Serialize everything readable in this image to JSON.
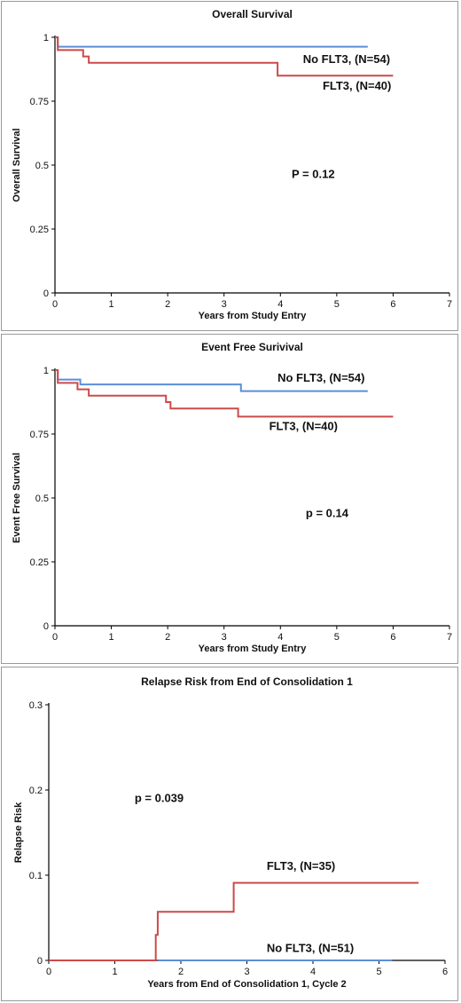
{
  "chart_data": [
    {
      "type": "line",
      "title": "Overall Survival",
      "xlabel": "Years from Study Entry",
      "ylabel": "Overall Survival",
      "xlim": [
        0,
        7
      ],
      "ylim": [
        0,
        1
      ],
      "xticks": [
        0,
        1,
        2,
        3,
        4,
        5,
        6,
        7
      ],
      "xtick_labels": [
        "0",
        "1",
        "2",
        "3",
        "4",
        "5",
        "6",
        "7"
      ],
      "yticks": [
        0,
        0.25,
        0.5,
        0.75,
        1
      ],
      "ytick_labels": [
        "0",
        "0.25",
        "0.5",
        "0.75",
        "1"
      ],
      "series": [
        {
          "color": "#5b8fd6",
          "step": true,
          "x": [
            0,
            0.05,
            5.55
          ],
          "y": [
            1,
            0.963,
            0.963
          ]
        },
        {
          "color": "#cc4a4a",
          "step": true,
          "x": [
            0,
            0.05,
            0.5,
            0.6,
            3.95,
            6.0
          ],
          "y": [
            1,
            0.95,
            0.925,
            0.9,
            0.85,
            0.85
          ]
        }
      ],
      "annotations": [
        {
          "text": "No FLT3, (N=54)",
          "x": 4.4,
          "y": 0.9
        },
        {
          "text": "FLT3, (N=40)",
          "x": 4.75,
          "y": 0.795
        },
        {
          "text": "P = 0.12",
          "x": 4.2,
          "y": 0.45
        }
      ]
    },
    {
      "type": "line",
      "title": "Event Free Surivival",
      "xlabel": "Years from Study Entry",
      "ylabel": "Event Free Survival",
      "xlim": [
        0,
        7
      ],
      "ylim": [
        0,
        1
      ],
      "xticks": [
        0,
        1,
        2,
        3,
        4,
        5,
        6,
        7
      ],
      "xtick_labels": [
        "0",
        "1",
        "2",
        "3",
        "4",
        "5",
        "6",
        "7"
      ],
      "yticks": [
        0,
        0.25,
        0.5,
        0.75,
        1
      ],
      "ytick_labels": [
        "0",
        "0.25",
        "0.5",
        "0.75",
        "1"
      ],
      "series": [
        {
          "color": "#5b8fd6",
          "step": true,
          "x": [
            0,
            0.05,
            0.45,
            3.3,
            5.55
          ],
          "y": [
            1,
            0.963,
            0.944,
            0.918,
            0.918
          ]
        },
        {
          "color": "#cc4a4a",
          "step": true,
          "x": [
            0,
            0.05,
            0.4,
            0.6,
            1.97,
            2.05,
            3.25,
            6.0
          ],
          "y": [
            1,
            0.95,
            0.925,
            0.9,
            0.875,
            0.85,
            0.818,
            0.818
          ]
        }
      ],
      "annotations": [
        {
          "text": "No FLT3, (N=54)",
          "x": 3.95,
          "y": 0.955
        },
        {
          "text": "FLT3, (N=40)",
          "x": 3.8,
          "y": 0.765
        },
        {
          "text": "p = 0.14",
          "x": 4.45,
          "y": 0.425
        }
      ]
    },
    {
      "type": "line",
      "title": "Relapse Risk from End of Consolidation 1",
      "xlabel": "Years from End of Consolidation 1, Cycle 2",
      "ylabel": "Relapse Risk",
      "xlim": [
        0,
        6
      ],
      "ylim": [
        0,
        0.3
      ],
      "xticks": [
        0,
        1,
        2,
        3,
        4,
        5,
        6
      ],
      "xtick_labels": [
        "0",
        "1",
        "2",
        "3",
        "4",
        "5",
        "6"
      ],
      "yticks": [
        0,
        0.1,
        0.2,
        0.3
      ],
      "ytick_labels": [
        "0",
        "0.1",
        "0.2",
        "0.3"
      ],
      "series": [
        {
          "color": "#5b8fd6",
          "step": true,
          "x": [
            1.65,
            5.2
          ],
          "y": [
            0,
            0
          ]
        },
        {
          "color": "#cc4a4a",
          "step": true,
          "x": [
            0,
            1.62,
            1.65,
            2.8,
            5.6
          ],
          "y": [
            0,
            0.03,
            0.057,
            0.091,
            0.091
          ]
        }
      ],
      "annotations": [
        {
          "text": "FLT3, (N=35)",
          "x": 3.3,
          "y": 0.106
        },
        {
          "text": "No FLT3, (N=51)",
          "x": 3.3,
          "y": 0.01
        },
        {
          "text": "p = 0.039",
          "x": 1.3,
          "y": 0.186
        }
      ]
    }
  ]
}
